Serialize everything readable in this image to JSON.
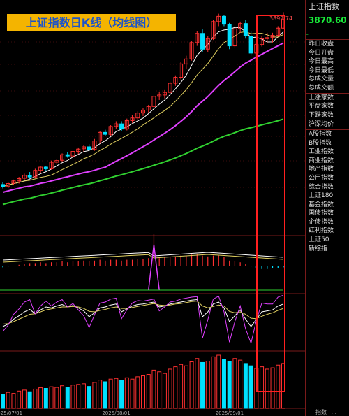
{
  "title": "上证指数日K线（均线图）",
  "panel": {
    "index_name": "上证指数",
    "last_value": "3870.60",
    "last_change": "-",
    "fields": [
      "昨日收盘",
      "今日开盘",
      "今日最高",
      "今日最低",
      "总成交量",
      "总成交额"
    ],
    "breadth": [
      "上涨家数",
      "平盘家数",
      "下跌家数"
    ],
    "avg_label": "沪深均价",
    "indices": [
      "A股指数",
      "B股指数",
      "工业指数",
      "商业指数",
      "地产指数",
      "公用指数",
      "综合指数",
      "上证180",
      "基金指数",
      "国债指数",
      "企债指数",
      "红利指数",
      "上证50",
      "新综指"
    ],
    "bottom_tabs": [
      "指数",
      "..."
    ]
  },
  "colors": {
    "up": "#ff3030",
    "down": "#00e0ff",
    "ma_short": "#ffffff",
    "ma_mid": "#e0d060",
    "ma_long": "#e040ff",
    "ma_vlong": "#30d030",
    "frame": "#7a1a1a",
    "highlight": "#ff2020"
  },
  "chart_data": {
    "type": "candlestick",
    "x_ticks": [
      {
        "label": "2025/07/01",
        "index": 1
      },
      {
        "label": "2025/08/01",
        "index": 21
      },
      {
        "label": "2025/09/01",
        "index": 42
      }
    ],
    "peak_label": "3892.74",
    "price_range": [
      3290,
      3900
    ],
    "candles": [
      [
        3367,
        3375,
        3355,
        3361
      ],
      [
        3362,
        3374,
        3356,
        3370
      ],
      [
        3371,
        3382,
        3365,
        3378
      ],
      [
        3378,
        3390,
        3370,
        3385
      ],
      [
        3386,
        3400,
        3380,
        3395
      ],
      [
        3395,
        3405,
        3385,
        3390
      ],
      [
        3390,
        3415,
        3386,
        3410
      ],
      [
        3410,
        3423,
        3402,
        3420
      ],
      [
        3420,
        3424,
        3408,
        3415
      ],
      [
        3415,
        3440,
        3412,
        3435
      ],
      [
        3435,
        3445,
        3428,
        3440
      ],
      [
        3441,
        3462,
        3435,
        3458
      ],
      [
        3458,
        3466,
        3449,
        3454
      ],
      [
        3454,
        3472,
        3450,
        3468
      ],
      [
        3468,
        3480,
        3460,
        3475
      ],
      [
        3476,
        3486,
        3468,
        3482
      ],
      [
        3482,
        3490,
        3470,
        3474
      ],
      [
        3474,
        3506,
        3470,
        3500
      ],
      [
        3500,
        3530,
        3492,
        3526
      ],
      [
        3526,
        3534,
        3516,
        3520
      ],
      [
        3520,
        3548,
        3515,
        3544
      ],
      [
        3544,
        3560,
        3536,
        3552
      ],
      [
        3552,
        3560,
        3530,
        3536
      ],
      [
        3536,
        3568,
        3532,
        3562
      ],
      [
        3562,
        3578,
        3555,
        3570
      ],
      [
        3570,
        3590,
        3565,
        3585
      ],
      [
        3585,
        3600,
        3576,
        3594
      ],
      [
        3594,
        3610,
        3587,
        3605
      ],
      [
        3605,
        3640,
        3600,
        3636
      ],
      [
        3636,
        3650,
        3625,
        3640
      ],
      [
        3640,
        3655,
        3630,
        3648
      ],
      [
        3648,
        3680,
        3645,
        3676
      ],
      [
        3676,
        3700,
        3668,
        3694
      ],
      [
        3694,
        3740,
        3688,
        3735
      ],
      [
        3735,
        3760,
        3720,
        3750
      ],
      [
        3750,
        3805,
        3745,
        3800
      ],
      [
        3800,
        3835,
        3790,
        3828
      ],
      [
        3828,
        3840,
        3770,
        3780
      ],
      [
        3780,
        3820,
        3770,
        3812
      ],
      [
        3812,
        3870,
        3808,
        3864
      ],
      [
        3864,
        3888,
        3850,
        3880
      ],
      [
        3880,
        3884,
        3850,
        3856
      ],
      [
        3856,
        3860,
        3780,
        3790
      ],
      [
        3790,
        3850,
        3785,
        3842
      ],
      [
        3842,
        3864,
        3830,
        3858
      ],
      [
        3858,
        3870,
        3812,
        3820
      ],
      [
        3820,
        3836,
        3760,
        3768
      ],
      [
        3768,
        3800,
        3740,
        3794
      ],
      [
        3794,
        3820,
        3788,
        3812
      ],
      [
        3812,
        3830,
        3800,
        3815
      ],
      [
        3815,
        3830,
        3800,
        3822
      ],
      [
        3822,
        3850,
        3818,
        3844
      ],
      [
        3844,
        3892.74,
        3840,
        3870.6
      ]
    ],
    "volume": [
      42,
      48,
      45,
      52,
      55,
      50,
      58,
      62,
      60,
      65,
      63,
      68,
      64,
      70,
      72,
      74,
      66,
      78,
      85,
      80,
      88,
      90,
      84,
      92,
      88,
      95,
      98,
      102,
      115,
      110,
      105,
      118,
      125,
      132,
      128,
      140,
      150,
      138,
      142,
      155,
      160,
      148,
      140,
      150,
      145,
      135,
      128,
      120,
      125,
      118,
      122,
      130,
      135
    ],
    "macd": [
      -2,
      -1,
      0,
      1,
      2,
      3,
      3,
      4,
      3,
      4,
      4,
      5,
      4,
      5,
      5,
      6,
      5,
      6,
      7,
      6,
      7,
      7,
      6,
      7,
      7,
      8,
      8,
      9,
      38,
      9,
      10,
      10,
      11,
      12,
      12,
      13,
      14,
      12,
      11,
      12,
      12,
      10,
      6,
      5,
      4,
      2,
      -1,
      -3,
      -4,
      -4,
      -3,
      -3,
      -2
    ],
    "kdj_k": [
      40,
      45,
      55,
      62,
      70,
      75,
      66,
      74,
      80,
      78,
      82,
      85,
      80,
      83,
      78,
      72,
      60,
      68,
      78,
      80,
      84,
      86,
      70,
      76,
      82,
      85,
      86,
      88,
      90,
      80,
      82,
      86,
      88,
      90,
      92,
      94,
      95,
      60,
      70,
      86,
      90,
      78,
      50,
      62,
      74,
      55,
      40,
      55,
      70,
      72,
      74,
      82,
      86
    ],
    "kdj_d": [
      45,
      46,
      50,
      55,
      60,
      65,
      66,
      70,
      74,
      76,
      78,
      80,
      80,
      81,
      80,
      77,
      71,
      70,
      73,
      75,
      78,
      80,
      77,
      77,
      79,
      81,
      83,
      85,
      87,
      84,
      83,
      84,
      86,
      87,
      89,
      91,
      92,
      82,
      78,
      81,
      84,
      82,
      71,
      68,
      70,
      65,
      57,
      56,
      61,
      65,
      68,
      73,
      77
    ],
    "kdj_j": [
      30,
      43,
      65,
      76,
      90,
      95,
      66,
      82,
      92,
      82,
      90,
      95,
      80,
      87,
      74,
      62,
      38,
      64,
      88,
      90,
      96,
      98,
      56,
      74,
      88,
      93,
      92,
      94,
      96,
      72,
      80,
      90,
      92,
      96,
      98,
      100,
      101,
      16,
      54,
      96,
      102,
      70,
      8,
      50,
      82,
      35,
      6,
      53,
      88,
      86,
      86,
      100,
      104
    ]
  }
}
